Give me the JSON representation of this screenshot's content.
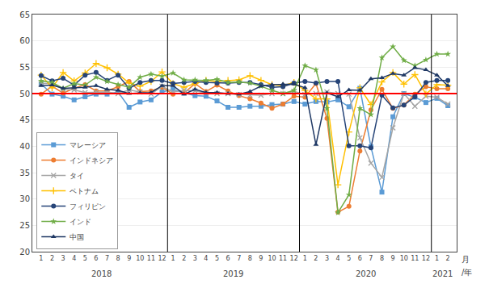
{
  "chart_data": {
    "type": "line",
    "categories": [
      "1",
      "2",
      "3",
      "4",
      "5",
      "6",
      "7",
      "8",
      "9",
      "10",
      "11",
      "12",
      "1",
      "2",
      "3",
      "4",
      "5",
      "6",
      "7",
      "8",
      "9",
      "10",
      "11",
      "12",
      "1",
      "2",
      "3",
      "4",
      "5",
      "6",
      "7",
      "8",
      "9",
      "10",
      "11",
      "12",
      "1",
      "2"
    ],
    "series": [
      {
        "name": "マレーシア",
        "color": "#5b9bd5",
        "marker": "square",
        "line_style": "solid",
        "values": [
          51.8,
          49.9,
          49.5,
          48.8,
          49.4,
          49.9,
          49.9,
          50.3,
          47.4,
          48.4,
          48.8,
          50.3,
          50.8,
          50.1,
          49.6,
          49.5,
          48.6,
          47.4,
          47.4,
          47.6,
          47.6,
          47.9,
          48.0,
          48.5,
          48.0,
          48.5,
          48.4,
          48.8,
          47.5,
          51.0,
          39.9,
          31.3,
          45.6,
          50.0,
          49.3,
          48.3,
          49.1,
          47.7
        ]
      },
      {
        "name": "インドネシア",
        "color": "#ed7d31",
        "marker": "circle",
        "line_style": "solid",
        "values": [
          49.9,
          51.4,
          50.1,
          51.0,
          51.7,
          50.5,
          50.5,
          51.3,
          52.3,
          50.4,
          50.5,
          51.2,
          49.9,
          50.1,
          51.9,
          50.4,
          51.6,
          50.5,
          49.6,
          49.0,
          48.2,
          47.2,
          48.0,
          49.5,
          49.3,
          51.9,
          45.3,
          27.5,
          28.6,
          39.1,
          46.9,
          50.8,
          47.2,
          47.8,
          49.9,
          51.3,
          50.9,
          50.9
        ]
      },
      {
        "name": "タイ",
        "color": "#a5a5a5",
        "marker": "x",
        "line_style": "solid",
        "values": [
          51.9,
          51.9,
          50.8,
          50.7,
          50.2,
          50.3,
          50.3,
          50.0,
          50.7,
          50.3,
          49.9,
          51.4,
          50.3,
          50.6,
          50.5,
          50.1,
          50.0,
          50.0,
          49.8,
          49.7,
          49.7,
          50.0,
          50.0,
          50.4,
          49.8,
          50.0,
          50.3,
          50.0,
          49.9,
          41.6,
          36.8,
          34.1,
          43.5,
          50.0,
          47.6,
          49.5,
          49.3,
          48.0
        ]
      },
      {
        "name": "ベトナム",
        "color": "#ffc000",
        "marker": "plus",
        "line_style": "solid",
        "values": [
          53.5,
          51.1,
          54.0,
          52.4,
          53.9,
          55.7,
          54.9,
          53.7,
          52.0,
          51.4,
          52.3,
          54.1,
          51.9,
          51.2,
          51.9,
          52.5,
          52.3,
          52.5,
          52.6,
          53.4,
          52.5,
          51.7,
          51.5,
          52.1,
          50.6,
          49.0,
          49.0,
          32.7,
          42.7,
          51.1,
          47.9,
          52.2,
          54.0,
          51.8,
          53.6,
          49.9,
          51.7,
          51.6
        ]
      },
      {
        "name": "フィリピン",
        "color": "#264478",
        "marker": "circle",
        "line_style": "solid",
        "values": [
          53.4,
          52.4,
          52.9,
          51.6,
          53.5,
          54.0,
          52.5,
          53.5,
          51.0,
          52.1,
          52.5,
          52.5,
          51.9,
          52.1,
          52.3,
          52.1,
          52.0,
          52.0,
          52.1,
          52.1,
          51.7,
          51.2,
          51.3,
          52.0,
          52.3,
          52.0,
          52.3,
          52.3,
          40.1,
          40.1,
          39.7,
          49.7,
          47.3,
          47.8,
          49.4,
          52.1,
          52.5,
          52.5
        ]
      },
      {
        "name": "インド",
        "color": "#70ad47",
        "marker": "star",
        "line_style": "solid",
        "values": [
          52.4,
          52.1,
          51.0,
          51.9,
          51.6,
          53.1,
          52.3,
          51.7,
          51.2,
          53.1,
          53.7,
          53.3,
          53.9,
          52.6,
          52.6,
          52.5,
          52.7,
          52.1,
          52.2,
          52.0,
          51.4,
          50.6,
          50.0,
          50.6,
          55.3,
          54.5,
          47.2,
          27.4,
          30.8,
          47.2,
          46.0,
          56.8,
          58.9,
          56.3,
          55.3,
          56.4,
          57.5,
          57.5
        ]
      },
      {
        "name": "中国",
        "color": "#1f3864",
        "marker": "triangle-up",
        "line_style": "solid",
        "values": [
          51.5,
          51.6,
          51.0,
          51.1,
          51.2,
          51.5,
          50.8,
          50.6,
          50.0,
          50.1,
          50.2,
          51.5,
          51.5,
          49.9,
          50.8,
          50.2,
          50.2,
          50.0,
          49.9,
          50.4,
          51.4,
          51.7,
          51.8,
          51.8,
          51.1,
          40.3,
          50.1,
          49.4,
          50.7,
          50.6,
          52.8,
          53.0,
          53.8,
          53.5,
          54.9,
          54.5,
          53.5,
          51.5
        ]
      }
    ],
    "hline": {
      "value": 50,
      "color": "#ff0000"
    },
    "ylim": [
      20,
      65
    ],
    "yticks": [
      20,
      25,
      30,
      35,
      40,
      45,
      50,
      55,
      60,
      65
    ],
    "grid": true,
    "legend": "lower left",
    "annotations": [
      "2018",
      "2019",
      "2020",
      "2021",
      "月",
      "/年"
    ]
  }
}
